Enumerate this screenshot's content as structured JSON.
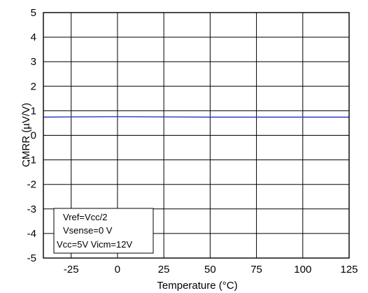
{
  "chart_data": {
    "type": "line",
    "xlabel": "Temperature (°C)",
    "ylabel": "CMRR (µV/V)",
    "xlim": [
      -40,
      125
    ],
    "ylim": [
      -5,
      5
    ],
    "xticks": [
      -25,
      0,
      25,
      50,
      75,
      100,
      125
    ],
    "yticks": [
      -5,
      -4,
      -3,
      -2,
      -1,
      0,
      1,
      2,
      3,
      4,
      5
    ],
    "grid": true,
    "series": [
      {
        "color": "#2a35c8",
        "x": [
          -40,
          -25,
          0,
          25,
          50,
          75,
          100,
          125
        ],
        "y": [
          0.74,
          0.75,
          0.76,
          0.75,
          0.74,
          0.74,
          0.74,
          0.74
        ]
      }
    ],
    "annotation": [
      "Vref=Vcc/2",
      "Vsense=0 V",
      "Vcc=5V Vicm=12V"
    ]
  }
}
